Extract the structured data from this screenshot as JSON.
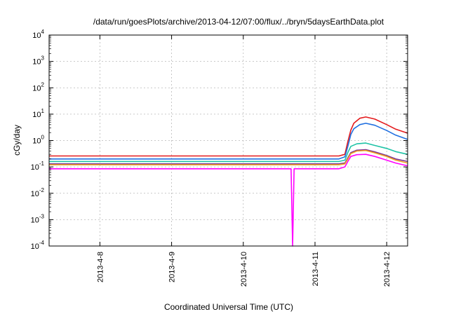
{
  "chart_data": {
    "type": "line",
    "title": "/data/run/goesPlots/archive/2013-04-12/07:00/flux/../bryn/5daysEarthData.plot",
    "xlabel": "Coordinated Universal Time (UTC)",
    "ylabel": "cGy/day",
    "x_scale": "time",
    "xlim": [
      "2013-04-07T07:00",
      "2013-04-12T07:00"
    ],
    "x_ticks": [
      "2013-4-8",
      "2013-4-9",
      "2013-4-10",
      "2013-4-11",
      "2013-4-12"
    ],
    "y_scale": "log",
    "ylim": [
      0.0001,
      10000
    ],
    "y_ticks": [
      {
        "base": "10",
        "exp": "-4"
      },
      {
        "base": "10",
        "exp": "-3"
      },
      {
        "base": "10",
        "exp": "-2"
      },
      {
        "base": "10",
        "exp": "-1"
      },
      {
        "base": "10",
        "exp": "0"
      },
      {
        "base": "10",
        "exp": "1"
      },
      {
        "base": "10",
        "exp": "2"
      },
      {
        "base": "10",
        "exp": "3"
      },
      {
        "base": "10",
        "exp": "4"
      }
    ],
    "grid": true,
    "legend": "none",
    "series": [
      {
        "color": "#e41a1c",
        "points": [
          [
            "2013-04-07T07:00",
            0.26
          ],
          [
            "2013-04-11T08:00",
            0.26
          ],
          [
            "2013-04-11T10:00",
            0.3
          ],
          [
            "2013-04-11T11:00",
            0.9
          ],
          [
            "2013-04-11T12:00",
            2.5
          ],
          [
            "2013-04-11T13:00",
            4.5
          ],
          [
            "2013-04-11T15:00",
            7.0
          ],
          [
            "2013-04-11T17:00",
            7.8
          ],
          [
            "2013-04-11T20:00",
            6.5
          ],
          [
            "2013-04-12T00:00",
            4.0
          ],
          [
            "2013-04-12T03:00",
            2.7
          ],
          [
            "2013-04-12T07:00",
            1.9
          ]
        ]
      },
      {
        "color": "#1f6fe0",
        "points": [
          [
            "2013-04-07T07:00",
            0.2
          ],
          [
            "2013-04-11T08:00",
            0.2
          ],
          [
            "2013-04-11T10:00",
            0.24
          ],
          [
            "2013-04-11T11:00",
            0.6
          ],
          [
            "2013-04-11T12:00",
            1.7
          ],
          [
            "2013-04-11T13:00",
            2.8
          ],
          [
            "2013-04-11T15:00",
            4.0
          ],
          [
            "2013-04-11T17:00",
            4.5
          ],
          [
            "2013-04-11T20:00",
            3.8
          ],
          [
            "2013-04-12T00:00",
            2.4
          ],
          [
            "2013-04-12T03:00",
            1.6
          ],
          [
            "2013-04-12T07:00",
            1.1
          ]
        ]
      },
      {
        "color": "#1ec3a6",
        "points": [
          [
            "2013-04-07T07:00",
            0.16
          ],
          [
            "2013-04-11T08:00",
            0.16
          ],
          [
            "2013-04-11T10:00",
            0.18
          ],
          [
            "2013-04-11T11:00",
            0.35
          ],
          [
            "2013-04-11T12:00",
            0.6
          ],
          [
            "2013-04-11T14:00",
            0.75
          ],
          [
            "2013-04-11T17:00",
            0.8
          ],
          [
            "2013-04-11T20:00",
            0.65
          ],
          [
            "2013-04-12T00:00",
            0.5
          ],
          [
            "2013-04-12T03:00",
            0.38
          ],
          [
            "2013-04-12T07:00",
            0.3
          ]
        ]
      },
      {
        "color": "#7b3294",
        "points": [
          [
            "2013-04-07T07:00",
            0.13
          ],
          [
            "2013-04-11T08:00",
            0.13
          ],
          [
            "2013-04-11T10:00",
            0.14
          ],
          [
            "2013-04-11T11:00",
            0.22
          ],
          [
            "2013-04-11T12:00",
            0.35
          ],
          [
            "2013-04-11T14:00",
            0.43
          ],
          [
            "2013-04-11T17:00",
            0.45
          ],
          [
            "2013-04-11T20:00",
            0.37
          ],
          [
            "2013-04-12T00:00",
            0.27
          ],
          [
            "2013-04-12T03:00",
            0.2
          ],
          [
            "2013-04-12T07:00",
            0.16
          ]
        ]
      },
      {
        "color": "#f0a020",
        "points": [
          [
            "2013-04-07T07:00",
            0.12
          ],
          [
            "2013-04-11T08:00",
            0.12
          ],
          [
            "2013-04-11T10:00",
            0.13
          ],
          [
            "2013-04-11T11:00",
            0.2
          ],
          [
            "2013-04-11T12:00",
            0.32
          ],
          [
            "2013-04-11T14:00",
            0.4
          ],
          [
            "2013-04-11T17:00",
            0.42
          ],
          [
            "2013-04-11T20:00",
            0.34
          ],
          [
            "2013-04-12T00:00",
            0.25
          ],
          [
            "2013-04-12T03:00",
            0.18
          ],
          [
            "2013-04-12T07:00",
            0.14
          ]
        ]
      },
      {
        "color": "#ff00ff",
        "points": [
          [
            "2013-04-07T07:00",
            0.085
          ],
          [
            "2013-04-10T16:00",
            0.085
          ],
          [
            "2013-04-10T16:30",
            0.0001
          ],
          [
            "2013-04-10T17:00",
            0.085
          ],
          [
            "2013-04-11T08:00",
            0.085
          ],
          [
            "2013-04-11T10:00",
            0.1
          ],
          [
            "2013-04-11T11:00",
            0.16
          ],
          [
            "2013-04-11T12:00",
            0.25
          ],
          [
            "2013-04-11T14:00",
            0.29
          ],
          [
            "2013-04-11T17:00",
            0.3
          ],
          [
            "2013-04-11T20:00",
            0.25
          ],
          [
            "2013-04-12T00:00",
            0.18
          ],
          [
            "2013-04-12T03:00",
            0.14
          ],
          [
            "2013-04-12T07:00",
            0.11
          ]
        ]
      }
    ]
  }
}
